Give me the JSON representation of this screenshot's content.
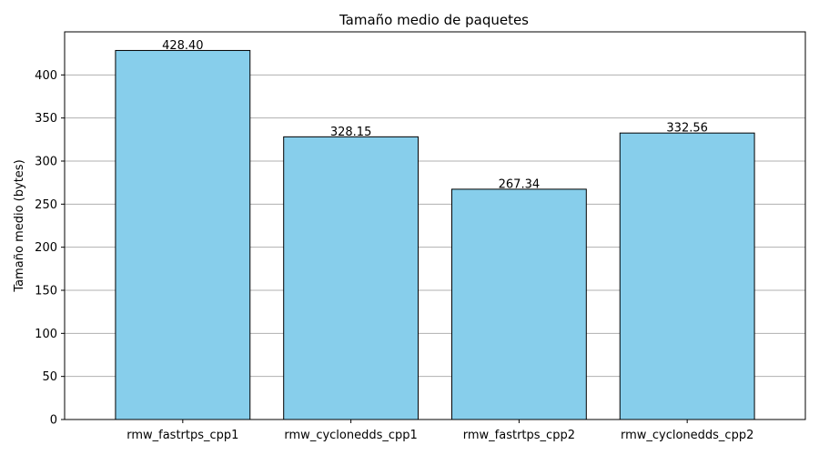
{
  "chart_data": {
    "type": "bar",
    "title": "Tamaño medio de paquetes",
    "xlabel": "",
    "ylabel": "Tamaño medio (bytes)",
    "categories": [
      "rmw_fastrtps_cpp1",
      "rmw_cyclonedds_cpp1",
      "rmw_fastrtps_cpp2",
      "rmw_cyclonedds_cpp2"
    ],
    "values": [
      428.4,
      328.15,
      267.34,
      332.56
    ],
    "value_labels": [
      "428.40",
      "328.15",
      "267.34",
      "332.56"
    ],
    "ylim": [
      0,
      450
    ],
    "yticks": [
      0,
      50,
      100,
      150,
      200,
      250,
      300,
      350,
      400
    ],
    "grid": "horizontal",
    "colors": {
      "bar_fill": "#87ceeb",
      "bar_edge": "#000000",
      "grid": "#b0b0b0",
      "axes": "#000000"
    }
  }
}
